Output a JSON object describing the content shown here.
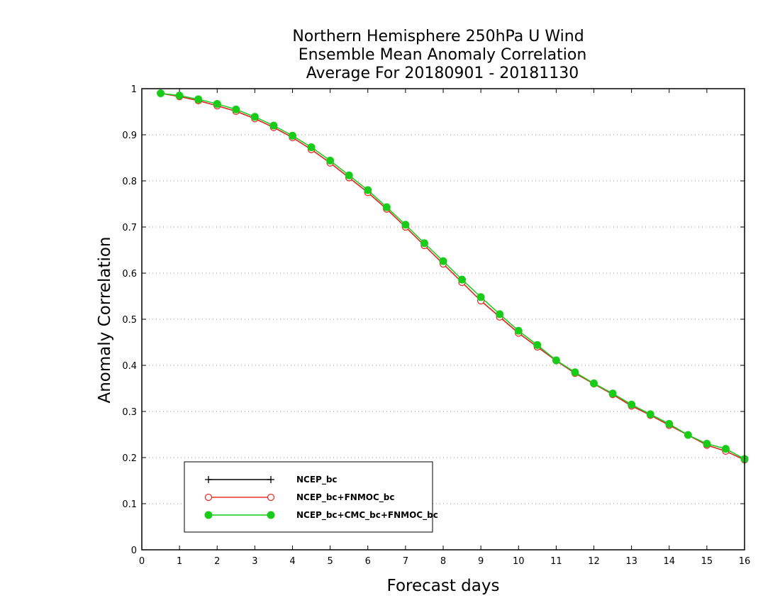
{
  "chart_data": {
    "type": "line",
    "title": [
      "Northern Hemisphere 250hPa U Wind",
      "Ensemble Mean Anomaly Correlation",
      "Average For 20180901 - 20181130"
    ],
    "xlabel": "Forecast days",
    "ylabel": "Anomaly Correlation",
    "xlim": [
      0,
      16
    ],
    "ylim": [
      0,
      1
    ],
    "xticks": [
      "0",
      "1",
      "2",
      "3",
      "4",
      "5",
      "6",
      "7",
      "8",
      "9",
      "10",
      "11",
      "12",
      "13",
      "14",
      "15",
      "16"
    ],
    "yticks": [
      "0",
      "0.1",
      "0.2",
      "0.3",
      "0.4",
      "0.5",
      "0.6",
      "0.7",
      "0.8",
      "0.9",
      "1"
    ],
    "grid": "horizontal-dotted",
    "legend_position": "bottom-left",
    "x": [
      0.5,
      1,
      1.5,
      2,
      2.5,
      3,
      3.5,
      4,
      4.5,
      5,
      5.5,
      6,
      6.5,
      7,
      7.5,
      8,
      8.5,
      9,
      9.5,
      10,
      10.5,
      11,
      11.5,
      12,
      12.5,
      13,
      13.5,
      14,
      14.5,
      15,
      15.5,
      16
    ],
    "series": [
      {
        "name": "NCEP_bc",
        "color": "#000000",
        "marker": "plus",
        "values": [
          0.99,
          0.983,
          0.974,
          0.963,
          0.951,
          0.935,
          0.916,
          0.894,
          0.868,
          0.839,
          0.807,
          0.775,
          0.739,
          0.7,
          0.66,
          0.62,
          0.58,
          0.54,
          0.505,
          0.47,
          0.44,
          0.41,
          0.383,
          0.36,
          0.337,
          0.312,
          0.292,
          0.27,
          0.249,
          0.227,
          0.214,
          0.195
        ]
      },
      {
        "name": "NCEP_bc+FNMOC_bc",
        "color": "#e8302a",
        "marker": "open-circle",
        "values": [
          0.99,
          0.983,
          0.974,
          0.963,
          0.951,
          0.935,
          0.916,
          0.894,
          0.868,
          0.839,
          0.807,
          0.775,
          0.739,
          0.7,
          0.66,
          0.62,
          0.58,
          0.54,
          0.505,
          0.47,
          0.44,
          0.41,
          0.383,
          0.36,
          0.337,
          0.312,
          0.292,
          0.27,
          0.249,
          0.227,
          0.214,
          0.195
        ]
      },
      {
        "name": "NCEP_bc+CMC_bc+FNMOC_bc",
        "color": "#19cc19",
        "marker": "filled-circle",
        "values": [
          0.99,
          0.985,
          0.977,
          0.967,
          0.955,
          0.939,
          0.92,
          0.898,
          0.873,
          0.844,
          0.812,
          0.78,
          0.743,
          0.705,
          0.665,
          0.626,
          0.586,
          0.548,
          0.511,
          0.475,
          0.444,
          0.411,
          0.385,
          0.361,
          0.339,
          0.315,
          0.294,
          0.273,
          0.249,
          0.23,
          0.219,
          0.197
        ]
      }
    ]
  }
}
